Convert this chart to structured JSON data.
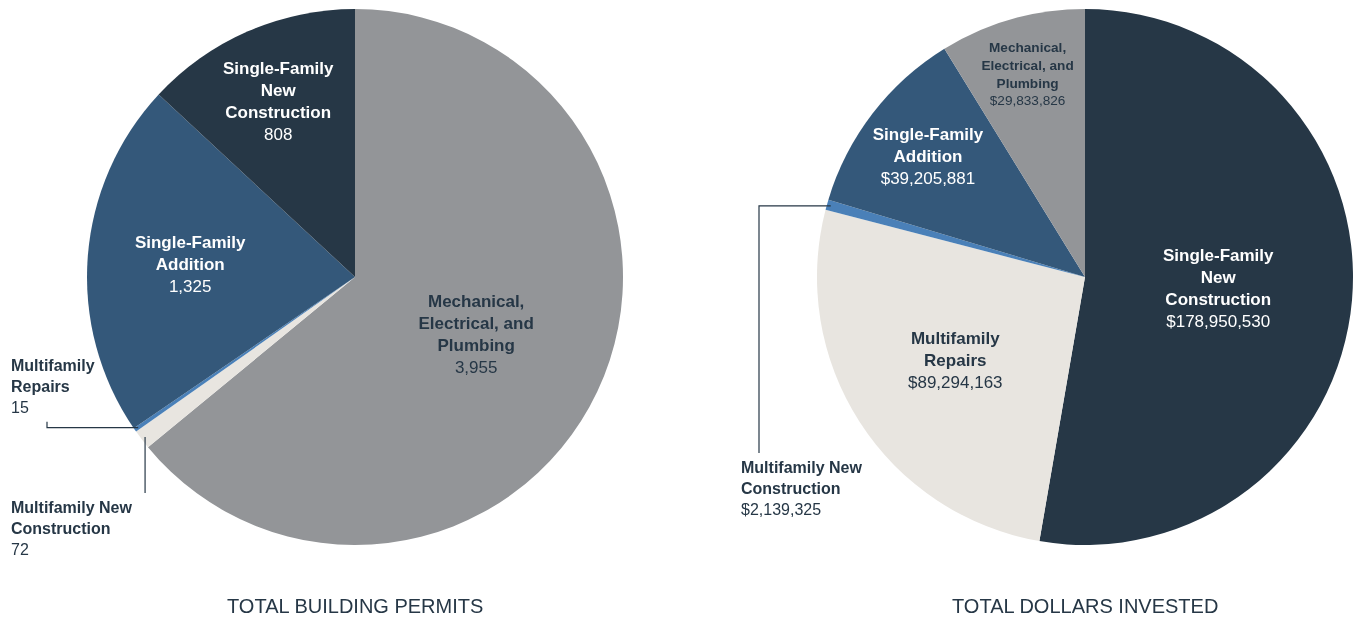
{
  "chart_data": [
    {
      "type": "pie",
      "title": "TOTAL BUILDING PERMITS",
      "categories": [
        "Mechanical, Electrical, and Plumbing",
        "Multifamily New Construction",
        "Multifamily Repairs",
        "Single-Family Addition",
        "Single-Family New Construction"
      ],
      "values": [
        3955,
        72,
        15,
        1325,
        808
      ],
      "value_labels": [
        "3,955",
        "72",
        "15",
        "1,325",
        "808"
      ],
      "colors": [
        "#939598",
        "#e8e5e0",
        "#4a80b8",
        "#34587a",
        "#263746"
      ]
    },
    {
      "type": "pie",
      "title": "TOTAL DOLLARS INVESTED",
      "categories": [
        "Single-Family New Construction",
        "Multifamily Repairs",
        "Multifamily New Construction",
        "Single-Family Addition",
        "Mechanical, Electrical, and Plumbing"
      ],
      "values": [
        178950530,
        89294163,
        2139325,
        39205881,
        29833826
      ],
      "value_labels": [
        "$178,950,530",
        "$89,294,163",
        "$2,139,325",
        "$39,205,881",
        "$29,833,826"
      ],
      "colors": [
        "#263746",
        "#e8e5e0",
        "#4a80b8",
        "#34587a",
        "#939598"
      ]
    }
  ]
}
